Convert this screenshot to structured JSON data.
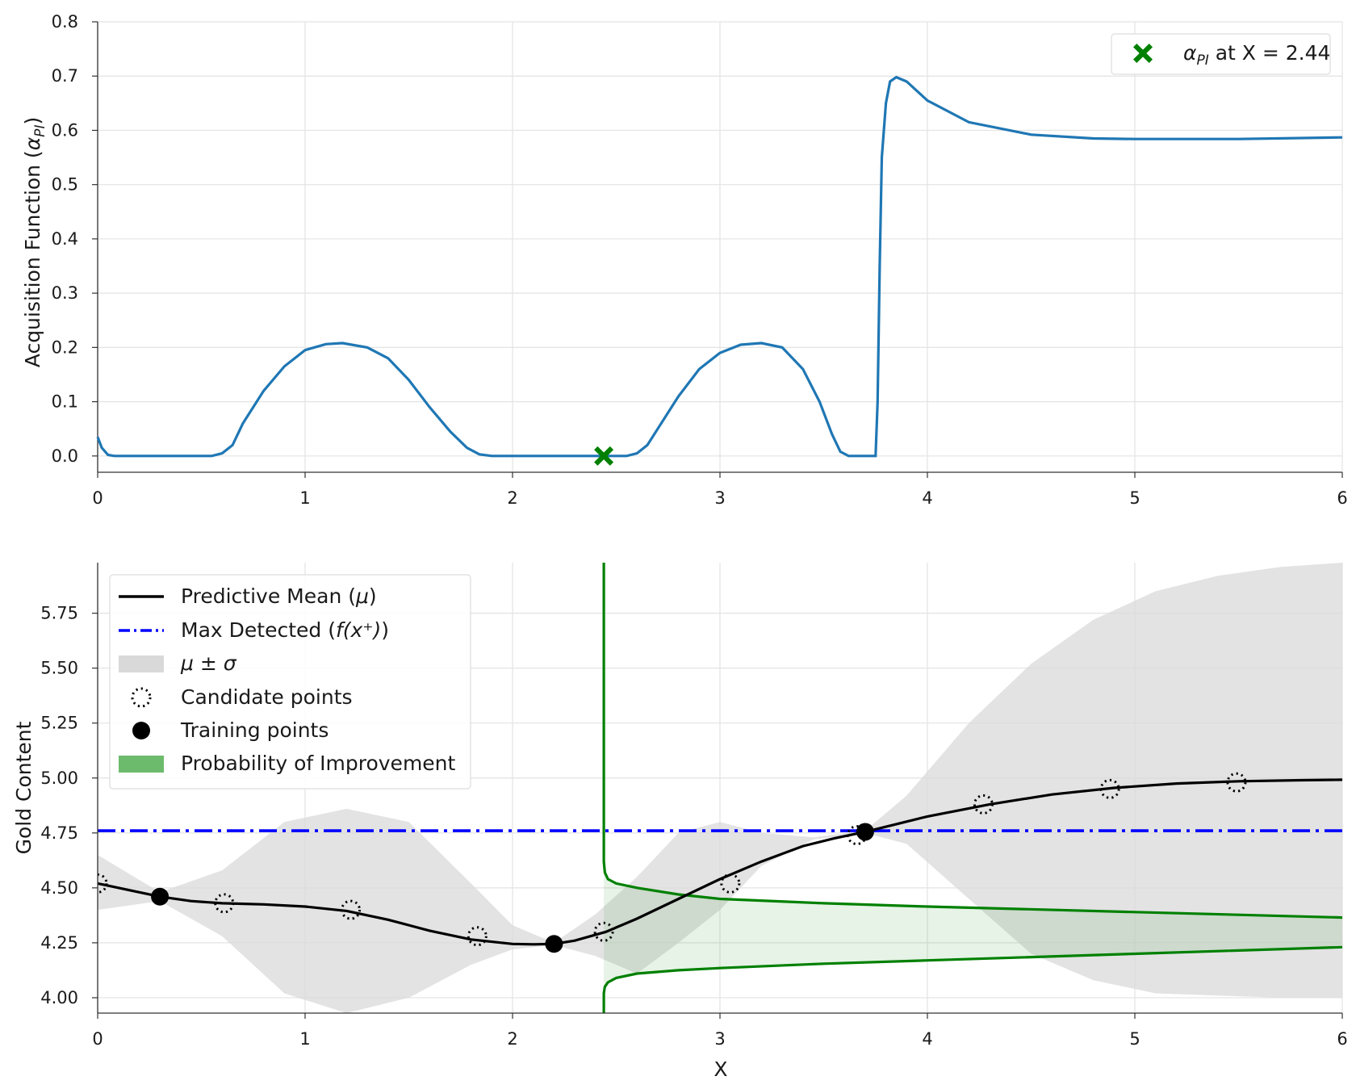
{
  "colors": {
    "pi_curve": "#1f77b4",
    "marker": "#008000",
    "mean": "#000000",
    "max_line": "#0000ff",
    "band": "#d9d9d9",
    "pi_density": "#008000",
    "pi_fill": "#2e9e2e",
    "grid": "#e3e3e3"
  },
  "chart_data": [
    {
      "type": "line",
      "ylabel": "Acquisition Function (α_PI)",
      "ylabel_main": "Acquisition Function (",
      "ylabel_greek": "α",
      "ylabel_sub": "PI",
      "ylabel_close": ")",
      "xlim": [
        0,
        6
      ],
      "ylim": [
        -0.03,
        0.8
      ],
      "xticks": [
        "0",
        "1",
        "2",
        "3",
        "4",
        "5",
        "6"
      ],
      "yticks": [
        "0.0",
        "0.1",
        "0.2",
        "0.3",
        "0.4",
        "0.5",
        "0.6",
        "0.7",
        "0.8"
      ],
      "grid": true,
      "legend_position": "top-right",
      "legend": [
        {
          "marker": "x-filled",
          "label": "α_PI at X = 2.44",
          "label_greek": "α",
          "label_sub": "PI",
          "label_rest": " at X = 2.44"
        }
      ],
      "series": [
        {
          "x": [
            0,
            0.02,
            0.05,
            0.08,
            0.2,
            0.4,
            0.55,
            0.6,
            0.65,
            0.7,
            0.8,
            0.9,
            1.0,
            1.1,
            1.18,
            1.3,
            1.4,
            1.5,
            1.6,
            1.7,
            1.78,
            1.84,
            1.9,
            2.0,
            2.2,
            2.44,
            2.55,
            2.6,
            2.65,
            2.7,
            2.8,
            2.9,
            3.0,
            3.1,
            3.2,
            3.3,
            3.4,
            3.48,
            3.54,
            3.58,
            3.62,
            3.7,
            3.75,
            3.76,
            3.77,
            3.78,
            3.8,
            3.82,
            3.85,
            3.9,
            4.0,
            4.2,
            4.5,
            4.8,
            5.0,
            5.5,
            6.0
          ],
          "y": [
            0.035,
            0.015,
            0.002,
            0.0,
            0.0,
            0.0,
            0.0,
            0.005,
            0.02,
            0.06,
            0.12,
            0.165,
            0.195,
            0.206,
            0.208,
            0.2,
            0.18,
            0.14,
            0.09,
            0.045,
            0.015,
            0.003,
            0.0,
            0.0,
            0.0,
            0.0,
            0.0,
            0.005,
            0.02,
            0.05,
            0.11,
            0.16,
            0.19,
            0.205,
            0.208,
            0.2,
            0.16,
            0.1,
            0.04,
            0.008,
            0.0,
            0.0,
            0.0,
            0.1,
            0.35,
            0.55,
            0.65,
            0.69,
            0.698,
            0.69,
            0.655,
            0.615,
            0.592,
            0.585,
            0.584,
            0.584,
            0.587
          ]
        }
      ],
      "markers": [
        {
          "x": 2.44,
          "y": 0.0,
          "label": "α_PI at X = 2.44"
        }
      ]
    },
    {
      "type": "line",
      "xlabel": "X",
      "ylabel": "Gold Content",
      "xlim": [
        0,
        6
      ],
      "ylim": [
        3.93,
        5.98
      ],
      "xticks": [
        "0",
        "1",
        "2",
        "3",
        "4",
        "5",
        "6"
      ],
      "yticks": [
        "4.00",
        "4.25",
        "4.50",
        "4.75",
        "5.00",
        "5.25",
        "5.50",
        "5.75"
      ],
      "grid": true,
      "legend_position": "top-left",
      "legend": [
        {
          "key": "mean",
          "label_text": "Predictive Mean (",
          "label_greek": "μ",
          "label_end": ")"
        },
        {
          "key": "max",
          "label_text": "Max Detected (",
          "label_greek": "f(x⁺)",
          "label_end": ")"
        },
        {
          "key": "band",
          "label_text": "",
          "label_greek": "μ ± σ",
          "label_end": ""
        },
        {
          "key": "candidates",
          "label_text": "Candidate points",
          "label_greek": "",
          "label_end": ""
        },
        {
          "key": "training",
          "label_text": "Training points",
          "label_greek": "",
          "label_end": ""
        },
        {
          "key": "pi",
          "label_text": "Probability of Improvement",
          "label_greek": "",
          "label_end": ""
        }
      ],
      "mean": {
        "x": [
          0,
          0.15,
          0.3,
          0.45,
          0.6,
          0.8,
          1.0,
          1.2,
          1.4,
          1.6,
          1.8,
          2.0,
          2.1,
          2.2,
          2.3,
          2.45,
          2.6,
          2.8,
          3.0,
          3.2,
          3.4,
          3.55,
          3.7,
          3.85,
          4.0,
          4.3,
          4.6,
          4.9,
          5.2,
          5.5,
          5.8,
          6.0
        ],
        "y": [
          4.52,
          4.49,
          4.46,
          4.44,
          4.43,
          4.425,
          4.415,
          4.395,
          4.355,
          4.305,
          4.265,
          4.245,
          4.243,
          4.245,
          4.26,
          4.3,
          4.36,
          4.45,
          4.54,
          4.62,
          4.69,
          4.725,
          4.755,
          4.79,
          4.825,
          4.88,
          4.925,
          4.955,
          4.975,
          4.985,
          4.99,
          4.992
        ]
      },
      "band": {
        "x": [
          0,
          0.3,
          0.6,
          0.9,
          1.2,
          1.5,
          1.8,
          2.0,
          2.2,
          2.4,
          2.6,
          2.8,
          3.0,
          3.2,
          3.45,
          3.7,
          3.9,
          4.2,
          4.5,
          4.8,
          5.1,
          5.4,
          5.7,
          6.0
        ],
        "lower": [
          4.4,
          4.44,
          4.28,
          4.02,
          3.93,
          4.0,
          4.15,
          4.22,
          4.24,
          4.19,
          4.11,
          4.25,
          4.4,
          4.6,
          4.72,
          4.75,
          4.7,
          4.45,
          4.2,
          4.08,
          4.02,
          4.01,
          4.0,
          4.0
        ],
        "upper": [
          4.65,
          4.48,
          4.58,
          4.8,
          4.86,
          4.8,
          4.52,
          4.33,
          4.25,
          4.38,
          4.55,
          4.75,
          4.8,
          4.75,
          4.73,
          4.76,
          4.92,
          5.25,
          5.52,
          5.72,
          5.85,
          5.92,
          5.96,
          5.98
        ]
      },
      "max_detected": 4.76,
      "candidates": {
        "x": [
          0.0,
          0.61,
          1.22,
          1.83,
          2.44,
          3.05,
          3.66,
          4.27,
          4.88,
          5.49
        ],
        "y": [
          4.52,
          4.43,
          4.4,
          4.28,
          4.3,
          4.52,
          4.74,
          4.88,
          4.95,
          4.98
        ]
      },
      "training": {
        "x": [
          0.3,
          2.2,
          3.7
        ],
        "y": [
          4.46,
          4.245,
          4.755
        ]
      },
      "pi_density": {
        "baseline_x": 2.44,
        "upper": {
          "x": [
            2.44,
            2.44,
            2.445,
            2.46,
            2.5,
            2.6,
            2.8,
            3.0,
            3.5,
            4.0,
            5.0,
            6.0
          ],
          "y": [
            5.98,
            4.62,
            4.57,
            4.54,
            4.52,
            4.5,
            4.47,
            4.45,
            4.43,
            4.415,
            4.39,
            4.365
          ]
        },
        "lower": {
          "x": [
            2.44,
            2.44,
            2.445,
            2.46,
            2.5,
            2.6,
            2.8,
            3.0,
            3.5,
            4.0,
            5.0,
            6.0
          ],
          "y": [
            3.93,
            4.02,
            4.05,
            4.07,
            4.09,
            4.11,
            4.125,
            4.135,
            4.155,
            4.17,
            4.2,
            4.23
          ]
        }
      }
    }
  ]
}
